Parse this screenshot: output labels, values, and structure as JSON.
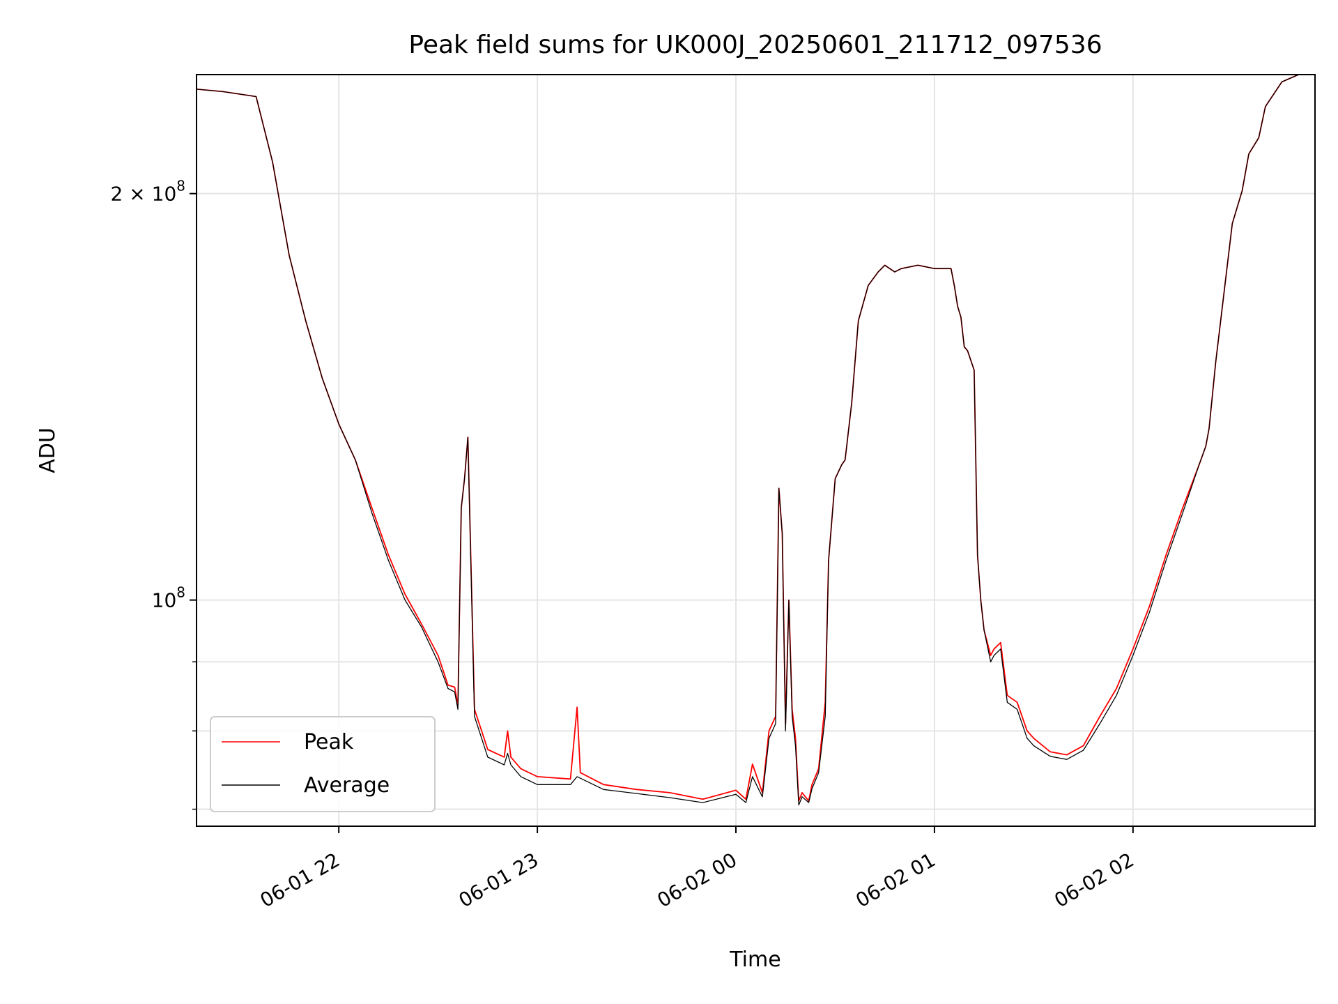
{
  "chart_data": {
    "type": "line",
    "title": "Peak field sums for UK000J_20250601_211712_097536",
    "xlabel": "Time",
    "ylabel": "ADU",
    "y_scale": "log",
    "grid": true,
    "legend_position": "lower-left",
    "xlim": [
      "2025-06-01 21:17",
      "2025-06-02 02:55"
    ],
    "ylim": [
      68000000,
      245000000
    ],
    "x_ticks": [
      {
        "value": "2025-06-01 22:00",
        "label": "06-01 22"
      },
      {
        "value": "2025-06-01 23:00",
        "label": "06-01 23"
      },
      {
        "value": "2025-06-02 00:00",
        "label": "06-02 00"
      },
      {
        "value": "2025-06-02 01:00",
        "label": "06-02 01"
      },
      {
        "value": "2025-06-02 02:00",
        "label": "06-02 02"
      }
    ],
    "y_ticks_major": [
      {
        "value": 100000000,
        "base": "10",
        "exp": "8",
        "coef": ""
      },
      {
        "value": 200000000,
        "base": "10",
        "exp": "8",
        "coef": "2"
      }
    ],
    "y_ticks_minor": [
      70000000,
      80000000,
      90000000
    ],
    "series": [
      {
        "name": "Peak",
        "color": "#ff0000",
        "x": [
          "2025-06-01 21:17",
          "2025-06-01 21:25",
          "2025-06-01 21:35",
          "2025-06-01 21:40",
          "2025-06-01 21:45",
          "2025-06-01 21:50",
          "2025-06-01 21:55",
          "2025-06-01 22:00",
          "2025-06-01 22:05",
          "2025-06-01 22:10",
          "2025-06-01 22:15",
          "2025-06-01 22:20",
          "2025-06-01 22:25",
          "2025-06-01 22:30",
          "2025-06-01 22:33",
          "2025-06-01 22:35",
          "2025-06-01 22:36",
          "2025-06-01 22:37",
          "2025-06-01 22:38",
          "2025-06-01 22:39",
          "2025-06-01 22:41",
          "2025-06-01 22:45",
          "2025-06-01 22:50",
          "2025-06-01 22:51",
          "2025-06-01 22:52",
          "2025-06-01 22:55",
          "2025-06-01 23:00",
          "2025-06-01 23:10",
          "2025-06-01 23:12",
          "2025-06-01 23:13",
          "2025-06-01 23:20",
          "2025-06-01 23:30",
          "2025-06-01 23:40",
          "2025-06-01 23:50",
          "2025-06-02 00:00",
          "2025-06-02 00:03",
          "2025-06-02 00:05",
          "2025-06-02 00:08",
          "2025-06-02 00:10",
          "2025-06-02 00:12",
          "2025-06-02 00:13",
          "2025-06-02 00:14",
          "2025-06-02 00:15",
          "2025-06-02 00:16",
          "2025-06-02 00:17",
          "2025-06-02 00:18",
          "2025-06-02 00:19",
          "2025-06-02 00:20",
          "2025-06-02 00:22",
          "2025-06-02 00:23",
          "2025-06-02 00:25",
          "2025-06-02 00:27",
          "2025-06-02 00:28",
          "2025-06-02 00:30",
          "2025-06-02 00:32",
          "2025-06-02 00:33",
          "2025-06-02 00:35",
          "2025-06-02 00:37",
          "2025-06-02 00:40",
          "2025-06-02 00:43",
          "2025-06-02 00:45",
          "2025-06-02 00:48",
          "2025-06-02 00:50",
          "2025-06-02 00:55",
          "2025-06-02 01:00",
          "2025-06-02 01:05",
          "2025-06-02 01:06",
          "2025-06-02 01:07",
          "2025-06-02 01:08",
          "2025-06-02 01:09",
          "2025-06-02 01:10",
          "2025-06-02 01:12",
          "2025-06-02 01:13",
          "2025-06-02 01:14",
          "2025-06-02 01:15",
          "2025-06-02 01:17",
          "2025-06-02 01:18",
          "2025-06-02 01:20",
          "2025-06-02 01:22",
          "2025-06-02 01:25",
          "2025-06-02 01:28",
          "2025-06-02 01:30",
          "2025-06-02 01:35",
          "2025-06-02 01:40",
          "2025-06-02 01:45",
          "2025-06-02 01:50",
          "2025-06-02 01:55",
          "2025-06-02 02:00",
          "2025-06-02 02:05",
          "2025-06-02 02:10",
          "2025-06-02 02:15",
          "2025-06-02 02:20",
          "2025-06-02 02:22",
          "2025-06-02 02:23",
          "2025-06-02 02:25",
          "2025-06-02 02:30",
          "2025-06-02 02:33",
          "2025-06-02 02:35",
          "2025-06-02 02:38",
          "2025-06-02 02:40",
          "2025-06-02 02:45",
          "2025-06-02 02:50",
          "2025-06-02 02:55"
        ],
        "values": [
          239000000,
          238000000,
          236000000,
          211000000,
          180000000,
          161000000,
          146000000,
          135000000,
          127000000,
          117000000,
          108000000,
          101000000,
          96000000,
          91000000,
          86500000,
          86200000,
          83600000,
          117000000,
          123000000,
          132000000,
          83000000,
          77500000,
          76500000,
          80000000,
          76500000,
          75000000,
          74000000,
          73700000,
          83300000,
          74500000,
          73000000,
          72400000,
          72000000,
          71200000,
          72300000,
          71200000,
          75600000,
          72000000,
          80000000,
          82000000,
          121000000,
          112000000,
          81000000,
          100000000,
          83000000,
          79000000,
          71000000,
          72000000,
          71000000,
          73000000,
          75000000,
          84000000,
          107000000,
          123000000,
          126000000,
          127000000,
          140000000,
          161000000,
          171000000,
          175000000,
          177000000,
          175000000,
          176000000,
          177000000,
          176000000,
          176000000,
          171000000,
          165000000,
          162000000,
          154000000,
          153000000,
          148000000,
          108000000,
          100000000,
          95000000,
          91000000,
          92000000,
          93000000,
          85000000,
          84000000,
          80000000,
          79000000,
          77200000,
          76800000,
          78000000,
          82000000,
          86000000,
          92000000,
          99000000,
          108000000,
          117000000,
          126000000,
          130000000,
          134000000,
          150000000,
          190000000,
          201000000,
          214000000,
          220000000,
          232000000,
          242000000,
          245000000,
          245000000
        ]
      },
      {
        "name": "Average",
        "color": "#000000",
        "x": [
          "2025-06-01 21:17",
          "2025-06-01 21:25",
          "2025-06-01 21:35",
          "2025-06-01 21:40",
          "2025-06-01 21:45",
          "2025-06-01 21:50",
          "2025-06-01 21:55",
          "2025-06-01 22:00",
          "2025-06-01 22:05",
          "2025-06-01 22:10",
          "2025-06-01 22:15",
          "2025-06-01 22:20",
          "2025-06-01 22:25",
          "2025-06-01 22:30",
          "2025-06-01 22:33",
          "2025-06-01 22:35",
          "2025-06-01 22:36",
          "2025-06-01 22:37",
          "2025-06-01 22:38",
          "2025-06-01 22:39",
          "2025-06-01 22:41",
          "2025-06-01 22:45",
          "2025-06-01 22:50",
          "2025-06-01 22:51",
          "2025-06-01 22:52",
          "2025-06-01 22:55",
          "2025-06-01 23:00",
          "2025-06-01 23:10",
          "2025-06-01 23:12",
          "2025-06-01 23:13",
          "2025-06-01 23:20",
          "2025-06-01 23:30",
          "2025-06-01 23:40",
          "2025-06-01 23:50",
          "2025-06-02 00:00",
          "2025-06-02 00:03",
          "2025-06-02 00:05",
          "2025-06-02 00:08",
          "2025-06-02 00:10",
          "2025-06-02 00:12",
          "2025-06-02 00:13",
          "2025-06-02 00:14",
          "2025-06-02 00:15",
          "2025-06-02 00:16",
          "2025-06-02 00:17",
          "2025-06-02 00:18",
          "2025-06-02 00:19",
          "2025-06-02 00:20",
          "2025-06-02 00:22",
          "2025-06-02 00:23",
          "2025-06-02 00:25",
          "2025-06-02 00:27",
          "2025-06-02 00:28",
          "2025-06-02 00:30",
          "2025-06-02 00:32",
          "2025-06-02 00:33",
          "2025-06-02 00:35",
          "2025-06-02 00:37",
          "2025-06-02 00:40",
          "2025-06-02 00:43",
          "2025-06-02 00:45",
          "2025-06-02 00:48",
          "2025-06-02 00:50",
          "2025-06-02 00:55",
          "2025-06-02 01:00",
          "2025-06-02 01:05",
          "2025-06-02 01:06",
          "2025-06-02 01:07",
          "2025-06-02 01:08",
          "2025-06-02 01:09",
          "2025-06-02 01:10",
          "2025-06-02 01:12",
          "2025-06-02 01:13",
          "2025-06-02 01:14",
          "2025-06-02 01:15",
          "2025-06-02 01:17",
          "2025-06-02 01:18",
          "2025-06-02 01:20",
          "2025-06-02 01:22",
          "2025-06-02 01:25",
          "2025-06-02 01:28",
          "2025-06-02 01:30",
          "2025-06-02 01:35",
          "2025-06-02 01:40",
          "2025-06-02 01:45",
          "2025-06-02 01:50",
          "2025-06-02 01:55",
          "2025-06-02 02:00",
          "2025-06-02 02:05",
          "2025-06-02 02:10",
          "2025-06-02 02:15",
          "2025-06-02 02:20",
          "2025-06-02 02:22",
          "2025-06-02 02:23",
          "2025-06-02 02:25",
          "2025-06-02 02:30",
          "2025-06-02 02:33",
          "2025-06-02 02:35",
          "2025-06-02 02:38",
          "2025-06-02 02:40",
          "2025-06-02 02:45",
          "2025-06-02 02:50",
          "2025-06-02 02:55"
        ],
        "values": [
          239000000,
          238000000,
          236000000,
          211000000,
          180000000,
          161000000,
          146000000,
          135000000,
          127000000,
          116000000,
          107000000,
          100000000,
          95500000,
          90000000,
          86000000,
          85500000,
          83000000,
          117000000,
          123000000,
          132000000,
          82000000,
          76500000,
          75500000,
          77000000,
          75500000,
          74000000,
          73000000,
          73000000,
          74000000,
          73800000,
          72400000,
          71900000,
          71400000,
          70800000,
          71800000,
          70800000,
          74000000,
          71500000,
          79000000,
          81000000,
          121000000,
          112000000,
          80000000,
          100000000,
          82000000,
          78000000,
          70500000,
          71500000,
          70800000,
          72500000,
          74500000,
          82000000,
          107000000,
          123000000,
          126000000,
          127000000,
          140000000,
          161000000,
          171000000,
          175000000,
          177000000,
          175000000,
          176000000,
          177000000,
          176000000,
          176000000,
          171000000,
          165000000,
          162000000,
          154000000,
          153000000,
          148000000,
          108000000,
          100000000,
          95000000,
          90000000,
          91000000,
          92000000,
          84000000,
          83000000,
          79000000,
          78000000,
          76600000,
          76200000,
          77400000,
          81000000,
          85000000,
          91000000,
          98000000,
          107000000,
          116000000,
          126000000,
          130000000,
          134000000,
          150000000,
          190000000,
          201000000,
          214000000,
          220000000,
          232000000,
          242000000,
          245000000,
          245000000
        ]
      }
    ]
  }
}
